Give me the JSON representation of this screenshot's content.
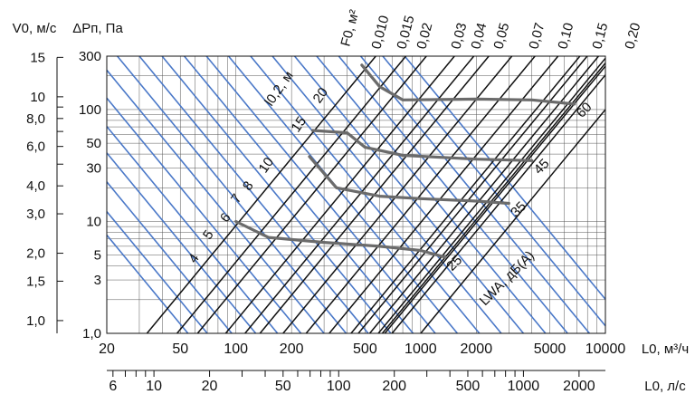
{
  "chart_data": {
    "type": "line",
    "title": "",
    "xlabel": "L0, м³/ч",
    "xlabel_secondary": "L0, л/с",
    "ylabel_pressure": "ΔPп, Па",
    "ylabel_velocity": "V0, м/с",
    "x_scale": "log",
    "y_scale": "log",
    "xlim": [
      20,
      10000
    ],
    "ylim": [
      1,
      300
    ],
    "grid": true,
    "x_ticks": [
      "20",
      "50",
      "100",
      "200",
      "500",
      "1000",
      "2000",
      "5000",
      "10000"
    ],
    "x_ticks_secondary": [
      "6",
      "10",
      "20",
      "50",
      "100",
      "200",
      "500",
      "1000",
      "2000"
    ],
    "y_ticks_pressure": [
      "1,0",
      "3",
      "5",
      "10",
      "30",
      "50",
      "100",
      "300"
    ],
    "y_ticks_velocity": [
      "1,0",
      "1,5",
      "2,0",
      "3,0",
      "4,0",
      "6,0",
      "8,0",
      "10",
      "15"
    ],
    "area_label": "F0, м²",
    "area_values": [
      "0,010",
      "0,015",
      "0,02",
      "0,03",
      "0,04",
      "0,05",
      "0,07",
      "0,10",
      "0,15",
      "0,20"
    ],
    "throw_label": "l0,2, м",
    "throw_values": [
      "4",
      "5",
      "6",
      "7",
      "8",
      "10",
      "15",
      "20"
    ],
    "noise_label": "LWA, дБ(A)",
    "noise_series": [
      {
        "name": "25",
        "points": [
          [
            100,
            10
          ],
          [
            150,
            7.2
          ],
          [
            300,
            6.5
          ],
          [
            600,
            6.0
          ],
          [
            1000,
            5.5
          ],
          [
            1350,
            4.8
          ]
        ]
      },
      {
        "name": "35",
        "points": [
          [
            250,
            38
          ],
          [
            350,
            20
          ],
          [
            600,
            16.8
          ],
          [
            1000,
            16
          ],
          [
            2000,
            15.2
          ],
          [
            3000,
            14.5
          ]
        ]
      },
      {
        "name": "45",
        "points": [
          [
            260,
            65
          ],
          [
            400,
            62
          ],
          [
            500,
            46
          ],
          [
            800,
            39
          ],
          [
            2000,
            36
          ],
          [
            4000,
            35
          ]
        ]
      },
      {
        "name": "60",
        "points": [
          [
            480,
            250
          ],
          [
            600,
            160
          ],
          [
            800,
            122
          ],
          [
            2000,
            124
          ],
          [
            4000,
            122
          ],
          [
            6800,
            112
          ]
        ]
      }
    ],
    "colors": {
      "area_lines": "#111111",
      "throw_lines": "#4a78c8",
      "noise_curves": "#6b6b6b"
    }
  }
}
